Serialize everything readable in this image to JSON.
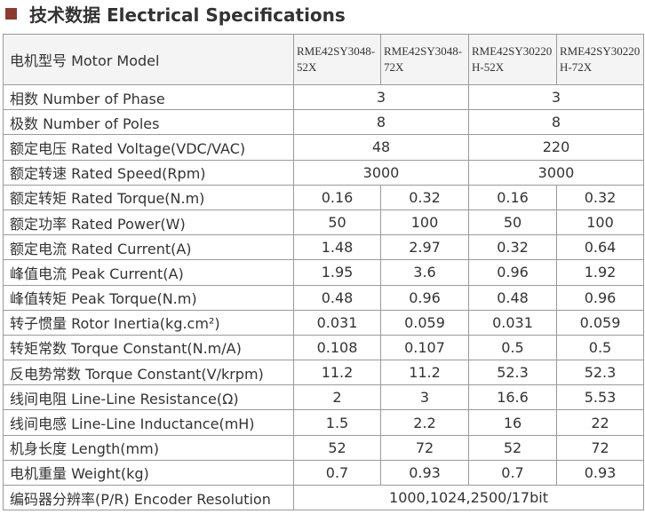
{
  "header": {
    "title": "技术数据 Electrical Specifications"
  },
  "table": {
    "head": [
      "电机型号 Motor Model",
      "RME42SY3048-52X",
      "RME42SY3048-72X",
      "RME42SY30220H-52X",
      "RME42SY30220H-72X"
    ],
    "rows": [
      [
        "相数 Number of Phase",
        "3",
        "3"
      ],
      [
        "极数 Number of Poles",
        "8",
        "8"
      ],
      [
        "额定电压 Rated Voltage(VDC/VAC)",
        "48",
        "220"
      ],
      [
        "额定转速 Rated Speed(Rpm)",
        "3000",
        "3000"
      ],
      [
        "额定转矩 Rated Torque(N.m)",
        "0.16",
        "0.32",
        "0.16",
        "0.32"
      ],
      [
        "额定功率 Rated Power(W)",
        "50",
        "100",
        "50",
        "100"
      ],
      [
        "额定电流 Rated Current(A)",
        "1.48",
        "2.97",
        "0.32",
        "0.64"
      ],
      [
        "峰值电流 Peak Current(A)",
        "1.95",
        "3.6",
        "0.96",
        "1.92"
      ],
      [
        "峰值转矩 Peak Torque(N.m)",
        "0.48",
        "0.96",
        "0.48",
        "0.96"
      ],
      [
        "转子惯量 Rotor Inertia(kg.cm²)",
        "0.031",
        "0.059",
        "0.031",
        "0.059"
      ],
      [
        "转矩常数 Torque Constant(N.m/A)",
        "0.108",
        "0.107",
        "0.5",
        "0.5"
      ],
      [
        "反电势常数 Torque Constant(V/krpm)",
        "11.2",
        "11.2",
        "52.3",
        "52.3"
      ],
      [
        "线间电阻 Line-Line Resistance(Ω)",
        "2",
        "3",
        "16.6",
        "5.53"
      ],
      [
        "线间电感 Line-Line Inductance(mH)",
        "1.5",
        "2.2",
        "16",
        "22"
      ],
      [
        "机身长度 Length(mm)",
        "52",
        "72",
        "52",
        "72"
      ],
      [
        "电机重量 Weight(kg)",
        "0.7",
        "0.93",
        "0.7",
        "0.93"
      ],
      [
        "编码器分辨率(P/R) Encoder Resolution",
        "1000,1024,2500/17bit"
      ]
    ]
  }
}
